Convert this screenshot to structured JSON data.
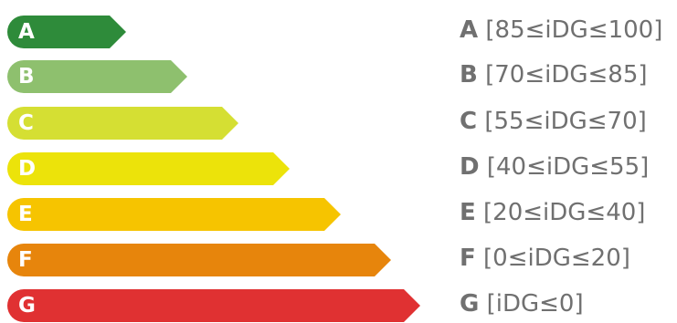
{
  "classes": [
    {
      "letter": "A",
      "range": "[85≤iDG≤100]",
      "color": "#2e8b3a"
    },
    {
      "letter": "B",
      "range": "[70≤iDG≤85]",
      "color": "#8ec06e"
    },
    {
      "letter": "C",
      "range": "[55≤iDG≤70]",
      "color": "#d5df33"
    },
    {
      "letter": "D",
      "range": "[40≤iDG≤55]",
      "color": "#ece30a"
    },
    {
      "letter": "E",
      "range": "[20≤iDG≤40]",
      "color": "#f6c400"
    },
    {
      "letter": "F",
      "range": "[0≤iDG≤20]",
      "color": "#e7850c"
    },
    {
      "letter": "G",
      "range": "[iDG≤0]",
      "color": "#e03132"
    }
  ]
}
